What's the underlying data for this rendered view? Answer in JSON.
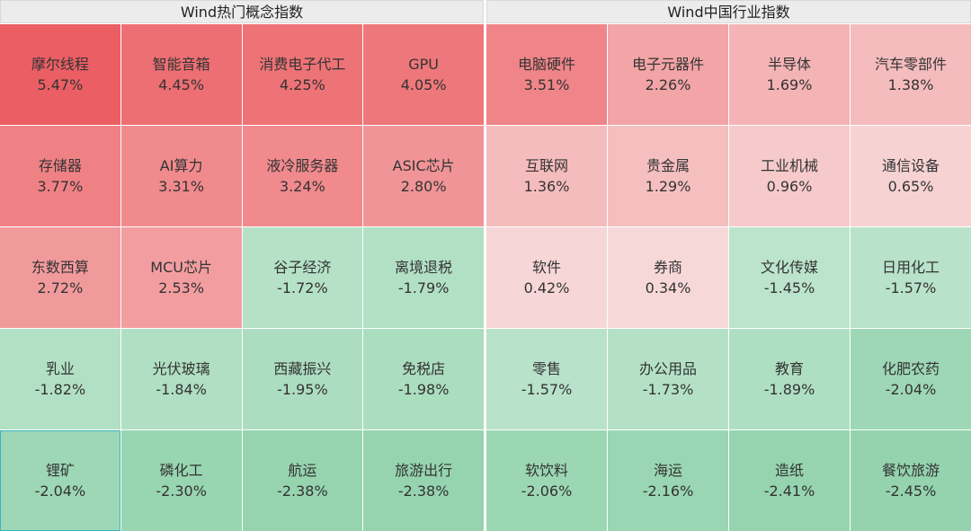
{
  "left_panel": {
    "title": "Wind热门概念指数",
    "cells": [
      {
        "name": "摩尔线程",
        "pct": "5.47%",
        "color": "#eb5e64"
      },
      {
        "name": "智能音箱",
        "pct": "4.45%",
        "color": "#ed6f73"
      },
      {
        "name": "消费电子代工",
        "pct": "4.25%",
        "color": "#ee7377"
      },
      {
        "name": "GPU",
        "pct": "4.05%",
        "color": "#ee777b"
      },
      {
        "name": "存储器",
        "pct": "3.77%",
        "color": "#ef8185"
      },
      {
        "name": "AI算力",
        "pct": "3.31%",
        "color": "#f08a8d"
      },
      {
        "name": "液冷服务器",
        "pct": "3.24%",
        "color": "#f08a8d"
      },
      {
        "name": "ASIC芯片",
        "pct": "2.80%",
        "color": "#f19497"
      },
      {
        "name": "东数西算",
        "pct": "2.72%",
        "color": "#f19a9c"
      },
      {
        "name": "MCU芯片",
        "pct": "2.53%",
        "color": "#f29ea1"
      },
      {
        "name": "谷子经济",
        "pct": "-1.72%",
        "color": "#b5e1c7"
      },
      {
        "name": "离境退税",
        "pct": "-1.79%",
        "color": "#b2e0c5"
      },
      {
        "name": "乳业",
        "pct": "-1.82%",
        "color": "#b2e0c5"
      },
      {
        "name": "光伏玻璃",
        "pct": "-1.84%",
        "color": "#b0dfc3"
      },
      {
        "name": "西藏振兴",
        "pct": "-1.95%",
        "color": "#acddc0"
      },
      {
        "name": "免税店",
        "pct": "-1.98%",
        "color": "#abddbf"
      },
      {
        "name": "锂矿",
        "pct": "-2.04%",
        "color": "#9dd7b5",
        "selected": true
      },
      {
        "name": "磷化工",
        "pct": "-2.30%",
        "color": "#98d5b1"
      },
      {
        "name": "航运",
        "pct": "-2.38%",
        "color": "#96d4af"
      },
      {
        "name": "旅游出行",
        "pct": "-2.38%",
        "color": "#96d4af"
      }
    ]
  },
  "right_panel": {
    "title": "Wind中国行业指数",
    "cells": [
      {
        "name": "电脑硬件",
        "pct": "3.51%",
        "color": "#ef8589"
      },
      {
        "name": "电子元器件",
        "pct": "2.26%",
        "color": "#f2a4a6"
      },
      {
        "name": "半导体",
        "pct": "1.69%",
        "color": "#f4b4b5"
      },
      {
        "name": "汽车零部件",
        "pct": "1.38%",
        "color": "#f5bcbd"
      },
      {
        "name": "互联网",
        "pct": "1.36%",
        "color": "#f5bcbd"
      },
      {
        "name": "贵金属",
        "pct": "1.29%",
        "color": "#f5bfc0"
      },
      {
        "name": "工业机械",
        "pct": "0.96%",
        "color": "#f6cacb"
      },
      {
        "name": "通信设备",
        "pct": "0.65%",
        "color": "#f7d2d3"
      },
      {
        "name": "软件",
        "pct": "0.42%",
        "color": "#f7d6d7"
      },
      {
        "name": "券商",
        "pct": "0.34%",
        "color": "#f7d8d8"
      },
      {
        "name": "文化传媒",
        "pct": "-1.45%",
        "color": "#bce4cc"
      },
      {
        "name": "日用化工",
        "pct": "-1.57%",
        "color": "#b8e2ca"
      },
      {
        "name": "零售",
        "pct": "-1.57%",
        "color": "#b8e2ca"
      },
      {
        "name": "办公用品",
        "pct": "-1.73%",
        "color": "#b4e1c6"
      },
      {
        "name": "教育",
        "pct": "-1.89%",
        "color": "#afdfc3"
      },
      {
        "name": "化肥农药",
        "pct": "-2.04%",
        "color": "#9dd7b5"
      },
      {
        "name": "软饮料",
        "pct": "-2.06%",
        "color": "#9cd7b4"
      },
      {
        "name": "海运",
        "pct": "-2.16%",
        "color": "#9ad6b3"
      },
      {
        "name": "造纸",
        "pct": "-2.41%",
        "color": "#95d4af"
      },
      {
        "name": "餐饮旅游",
        "pct": "-2.45%",
        "color": "#94d3ae"
      }
    ]
  }
}
